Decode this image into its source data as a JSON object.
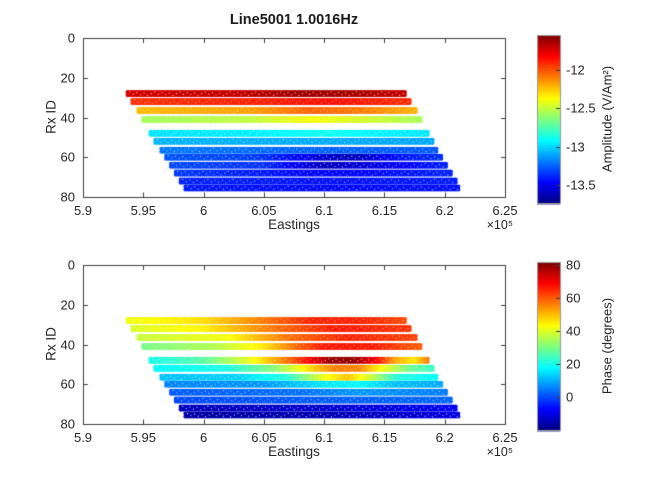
{
  "figure": {
    "background": "#ffffff",
    "text_color": "#262626"
  },
  "chart_data": [
    {
      "type": "scatter",
      "title": "Line5001 1.0016Hz",
      "xlabel": "Eastings",
      "ylabel": "Rx ID",
      "x_exponent_label": "×10⁵",
      "xlim": [
        5.9,
        6.25
      ],
      "ylim": [
        0,
        80
      ],
      "y_axis_reversed": true,
      "grid": false,
      "colormap": "jet",
      "xticks": [
        {
          "v": 5.9,
          "label": "5.9"
        },
        {
          "v": 5.95,
          "label": "5.95"
        },
        {
          "v": 6.0,
          "label": "6"
        },
        {
          "v": 6.05,
          "label": "6.05"
        },
        {
          "v": 6.1,
          "label": "6.1"
        },
        {
          "v": 6.15,
          "label": "6.15"
        },
        {
          "v": 6.2,
          "label": "6.2"
        },
        {
          "v": 6.25,
          "label": "6.25"
        }
      ],
      "yticks": [
        {
          "v": 0,
          "label": "0"
        },
        {
          "v": 20,
          "label": "20"
        },
        {
          "v": 40,
          "label": "40"
        },
        {
          "v": 60,
          "label": "60"
        },
        {
          "v": 80,
          "label": "80"
        }
      ],
      "colorbar": {
        "label": "Amplitude (V/Am²)",
        "position": "right",
        "vmin": -13.73,
        "vmax": -11.55,
        "ticks": [
          {
            "v": -12,
            "label": "-12"
          },
          {
            "v": -12.5,
            "label": "-12.5"
          },
          {
            "v": -13,
            "label": "-13"
          },
          {
            "v": -13.5,
            "label": "-13.5"
          }
        ]
      },
      "rows": [
        {
          "rx": 28,
          "x0": 5.937,
          "x1": 6.168,
          "stops": [
            [
              5.937,
              -11.73
            ],
            [
              6.03,
              -11.7
            ],
            [
              6.08,
              -11.62
            ],
            [
              6.12,
              -11.64
            ],
            [
              6.168,
              -11.7
            ]
          ]
        },
        {
          "rx": 32,
          "x0": 5.941,
          "x1": 6.172,
          "stops": [
            [
              5.941,
              -11.93
            ],
            [
              6.06,
              -11.88
            ],
            [
              6.11,
              -11.85
            ],
            [
              6.172,
              -11.92
            ]
          ]
        },
        {
          "rx": 36.5,
          "x0": 5.946,
          "x1": 6.176,
          "stops": [
            [
              5.946,
              -12.22
            ],
            [
              6.04,
              -12.16
            ],
            [
              6.09,
              -12.03
            ],
            [
              6.13,
              -12.08
            ],
            [
              6.176,
              -12.2
            ]
          ]
        },
        {
          "rx": 41,
          "x0": 5.95,
          "x1": 6.18,
          "stops": [
            [
              5.95,
              -12.56
            ],
            [
              6.04,
              -12.5
            ],
            [
              6.09,
              -12.38
            ],
            [
              6.13,
              -12.45
            ],
            [
              6.18,
              -12.55
            ]
          ]
        },
        {
          "rx": 48,
          "x0": 5.956,
          "x1": 6.186,
          "stops": [
            [
              5.956,
              -12.97
            ],
            [
              6.05,
              -12.94
            ],
            [
              6.1,
              -12.88
            ],
            [
              6.14,
              -12.93
            ],
            [
              6.186,
              -12.96
            ]
          ]
        },
        {
          "rx": 52,
          "x0": 5.96,
          "x1": 6.19,
          "stops": [
            [
              5.96,
              -13.07
            ],
            [
              6.08,
              -13.09
            ],
            [
              6.19,
              -13.1
            ]
          ]
        },
        {
          "rx": 56.5,
          "x0": 5.965,
          "x1": 6.194,
          "stops": [
            [
              5.965,
              -13.2
            ],
            [
              6.08,
              -13.24
            ],
            [
              6.194,
              -13.27
            ]
          ]
        },
        {
          "rx": 60,
          "x0": 5.969,
          "x1": 6.198,
          "stops": [
            [
              5.969,
              -13.28
            ],
            [
              6.04,
              -13.32
            ],
            [
              6.08,
              -13.45
            ],
            [
              6.105,
              -13.58
            ],
            [
              6.13,
              -13.6
            ],
            [
              6.16,
              -13.42
            ],
            [
              6.198,
              -13.35
            ]
          ]
        },
        {
          "rx": 64,
          "x0": 5.973,
          "x1": 6.202,
          "stops": [
            [
              5.973,
              -13.3
            ],
            [
              6.05,
              -13.35
            ],
            [
              6.1,
              -13.6
            ],
            [
              6.14,
              -13.52
            ],
            [
              6.202,
              -13.38
            ]
          ]
        },
        {
          "rx": 68,
          "x0": 5.977,
          "x1": 6.206,
          "stops": [
            [
              5.977,
              -13.33
            ],
            [
              6.09,
              -13.45
            ],
            [
              6.13,
              -13.45
            ],
            [
              6.206,
              -13.38
            ]
          ]
        },
        {
          "rx": 72,
          "x0": 5.981,
          "x1": 6.21,
          "stops": [
            [
              5.981,
              -13.38
            ],
            [
              6.1,
              -13.42
            ],
            [
              6.21,
              -13.4
            ]
          ]
        },
        {
          "rx": 75.5,
          "x0": 5.985,
          "x1": 6.213,
          "stops": [
            [
              5.985,
              -13.4
            ],
            [
              6.1,
              -13.44
            ],
            [
              6.213,
              -13.42
            ]
          ]
        }
      ]
    },
    {
      "type": "scatter",
      "title": "",
      "xlabel": "Eastings",
      "ylabel": "Rx ID",
      "x_exponent_label": "×10⁵",
      "xlim": [
        5.9,
        6.25
      ],
      "ylim": [
        0,
        80
      ],
      "y_axis_reversed": true,
      "grid": false,
      "colormap": "jet",
      "xticks": [
        {
          "v": 5.9,
          "label": "5.9"
        },
        {
          "v": 5.95,
          "label": "5.95"
        },
        {
          "v": 6.0,
          "label": "6"
        },
        {
          "v": 6.05,
          "label": "6.05"
        },
        {
          "v": 6.1,
          "label": "6.1"
        },
        {
          "v": 6.15,
          "label": "6.15"
        },
        {
          "v": 6.2,
          "label": "6.2"
        },
        {
          "v": 6.25,
          "label": "6.25"
        }
      ],
      "yticks": [
        {
          "v": 0,
          "label": "0"
        },
        {
          "v": 20,
          "label": "20"
        },
        {
          "v": 40,
          "label": "40"
        },
        {
          "v": 60,
          "label": "60"
        },
        {
          "v": 80,
          "label": "80"
        }
      ],
      "colorbar": {
        "label": "Phase (degrees)",
        "position": "right",
        "vmin": -20,
        "vmax": 82,
        "ticks": [
          {
            "v": 80,
            "label": "80"
          },
          {
            "v": 60,
            "label": "60"
          },
          {
            "v": 40,
            "label": "40"
          },
          {
            "v": 20,
            "label": "20"
          },
          {
            "v": 0,
            "label": "0"
          }
        ]
      },
      "rows": [
        {
          "rx": 28,
          "x0": 5.937,
          "x1": 6.168,
          "stops": [
            [
              5.937,
              42
            ],
            [
              6.0,
              47
            ],
            [
              6.05,
              57
            ],
            [
              6.09,
              66
            ],
            [
              6.13,
              66
            ],
            [
              6.168,
              62
            ]
          ]
        },
        {
          "rx": 32,
          "x0": 5.941,
          "x1": 6.172,
          "stops": [
            [
              5.941,
              40
            ],
            [
              6.0,
              45
            ],
            [
              6.06,
              58
            ],
            [
              6.11,
              67
            ],
            [
              6.172,
              64
            ]
          ]
        },
        {
          "rx": 36.5,
          "x0": 5.946,
          "x1": 6.176,
          "stops": [
            [
              5.946,
              38
            ],
            [
              6.02,
              43
            ],
            [
              6.07,
              58
            ],
            [
              6.12,
              66
            ],
            [
              6.176,
              63
            ]
          ]
        },
        {
          "rx": 41,
          "x0": 5.95,
          "x1": 6.18,
          "stops": [
            [
              5.95,
              30
            ],
            [
              6.01,
              36
            ],
            [
              6.05,
              46
            ],
            [
              6.08,
              60
            ],
            [
              6.1,
              67
            ],
            [
              6.14,
              67
            ],
            [
              6.18,
              60
            ]
          ]
        },
        {
          "rx": 48,
          "x0": 5.956,
          "x1": 6.186,
          "stops": [
            [
              5.956,
              20
            ],
            [
              6.0,
              27
            ],
            [
              6.04,
              42
            ],
            [
              6.07,
              58
            ],
            [
              6.09,
              70
            ],
            [
              6.105,
              79
            ],
            [
              6.125,
              80
            ],
            [
              6.145,
              68
            ],
            [
              6.16,
              52
            ],
            [
              6.175,
              46
            ],
            [
              6.186,
              56
            ]
          ]
        },
        {
          "rx": 52,
          "x0": 5.96,
          "x1": 6.19,
          "stops": [
            [
              5.96,
              18
            ],
            [
              6.02,
              21
            ],
            [
              6.06,
              32
            ],
            [
              6.09,
              48
            ],
            [
              6.11,
              57
            ],
            [
              6.13,
              56
            ],
            [
              6.15,
              42
            ],
            [
              6.17,
              30
            ],
            [
              6.19,
              24
            ]
          ]
        },
        {
          "rx": 56.5,
          "x0": 5.965,
          "x1": 6.194,
          "stops": [
            [
              5.965,
              12
            ],
            [
              6.03,
              14
            ],
            [
              6.07,
              22
            ],
            [
              6.1,
              42
            ],
            [
              6.12,
              50
            ],
            [
              6.14,
              38
            ],
            [
              6.16,
              22
            ],
            [
              6.194,
              18
            ]
          ]
        },
        {
          "rx": 60,
          "x0": 5.969,
          "x1": 6.198,
          "stops": [
            [
              5.969,
              6
            ],
            [
              6.05,
              8
            ],
            [
              6.1,
              16
            ],
            [
              6.13,
              18
            ],
            [
              6.16,
              12
            ],
            [
              6.198,
              10
            ]
          ]
        },
        {
          "rx": 64,
          "x0": 5.973,
          "x1": 6.202,
          "stops": [
            [
              5.973,
              2
            ],
            [
              6.08,
              4
            ],
            [
              6.13,
              8
            ],
            [
              6.202,
              5
            ]
          ]
        },
        {
          "rx": 68,
          "x0": 5.977,
          "x1": 6.206,
          "stops": [
            [
              5.977,
              0
            ],
            [
              6.1,
              2
            ],
            [
              6.206,
              3
            ]
          ]
        },
        {
          "rx": 72,
          "x0": 5.981,
          "x1": 6.21,
          "stops": [
            [
              5.981,
              -14
            ],
            [
              6.1,
              -12
            ],
            [
              6.21,
              -8
            ]
          ]
        },
        {
          "rx": 75.5,
          "x0": 5.985,
          "x1": 6.213,
          "stops": [
            [
              5.985,
              -16
            ],
            [
              6.1,
              -15
            ],
            [
              6.213,
              -10
            ]
          ]
        }
      ]
    }
  ]
}
